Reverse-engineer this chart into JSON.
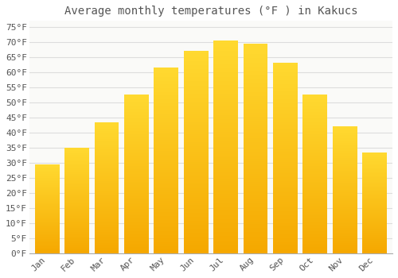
{
  "title": "Average monthly temperatures (°F ) in Kakucs",
  "months": [
    "Jan",
    "Feb",
    "Mar",
    "Apr",
    "May",
    "Jun",
    "Jul",
    "Aug",
    "Sep",
    "Oct",
    "Nov",
    "Dec"
  ],
  "values": [
    29.5,
    35.0,
    43.5,
    52.5,
    61.5,
    67.0,
    70.5,
    69.5,
    63.0,
    52.5,
    42.0,
    33.5
  ],
  "bar_color_bottom": "#F5A800",
  "bar_color_top": "#FFD966",
  "background_color": "#FFFFFF",
  "plot_bg_color": "#FAFAF8",
  "grid_color": "#DDDDDD",
  "text_color": "#555555",
  "ylim": [
    0,
    77
  ],
  "yticks": [
    0,
    5,
    10,
    15,
    20,
    25,
    30,
    35,
    40,
    45,
    50,
    55,
    60,
    65,
    70,
    75
  ],
  "ytick_labels": [
    "0°F",
    "5°F",
    "10°F",
    "15°F",
    "20°F",
    "25°F",
    "30°F",
    "35°F",
    "40°F",
    "45°F",
    "50°F",
    "55°F",
    "60°F",
    "65°F",
    "70°F",
    "75°F"
  ],
  "title_fontsize": 10,
  "tick_fontsize": 8,
  "font_family": "monospace",
  "bar_width": 0.82
}
